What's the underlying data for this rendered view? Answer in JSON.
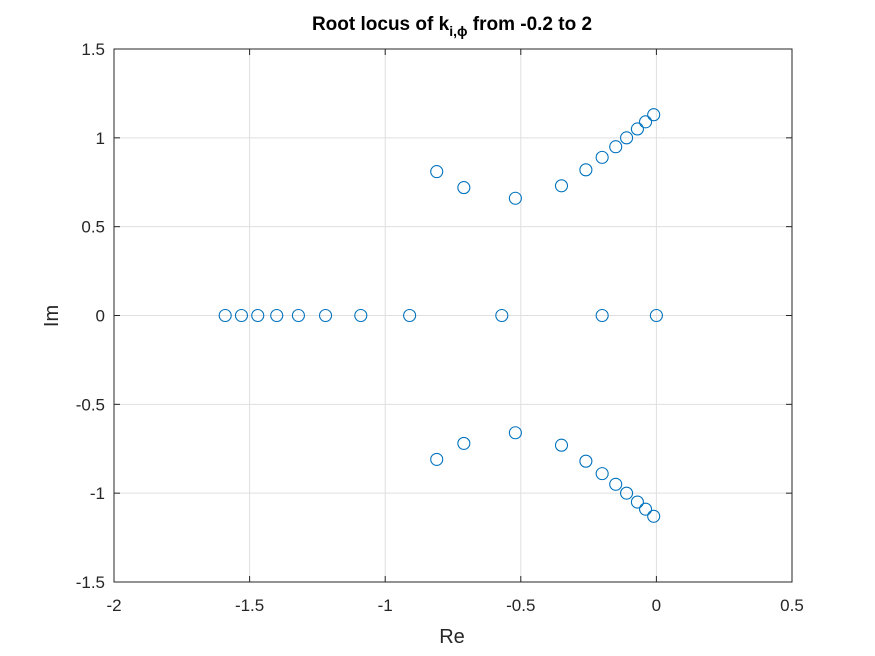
{
  "chart_data": {
    "type": "scatter",
    "title": {
      "prefix": "Root locus of k",
      "subscript": "i,ϕ",
      "suffix": " from -0.2 to 2"
    },
    "xlabel": "Re",
    "ylabel": "Im",
    "xlim": [
      -2,
      0.5
    ],
    "ylim": [
      -1.5,
      1.5
    ],
    "xticks": [
      -2,
      -1.5,
      -1,
      -0.5,
      0,
      0.5
    ],
    "xtick_labels": [
      "-2",
      "-1.5",
      "-1",
      "-0.5",
      "0",
      "0.5"
    ],
    "yticks": [
      -1.5,
      -1,
      -0.5,
      0,
      0.5,
      1,
      1.5
    ],
    "ytick_labels": [
      "-1.5",
      "-1",
      "-0.5",
      "0",
      "0.5",
      "1",
      "1.5"
    ],
    "grid": true,
    "marker": "circle-open",
    "series": [
      {
        "points": [
          [
            -1.59,
            0
          ],
          [
            -1.53,
            0
          ],
          [
            -1.47,
            0
          ],
          [
            -1.4,
            0
          ],
          [
            -1.32,
            0
          ],
          [
            -1.22,
            0
          ],
          [
            -1.09,
            0
          ],
          [
            -0.91,
            0
          ],
          [
            -0.57,
            0
          ],
          [
            -0.2,
            0
          ],
          [
            0.0,
            0
          ],
          [
            -0.81,
            0.81
          ],
          [
            -0.71,
            0.72
          ],
          [
            -0.52,
            0.66
          ],
          [
            -0.35,
            0.73
          ],
          [
            -0.26,
            0.82
          ],
          [
            -0.2,
            0.89
          ],
          [
            -0.15,
            0.95
          ],
          [
            -0.11,
            1.0
          ],
          [
            -0.07,
            1.05
          ],
          [
            -0.04,
            1.09
          ],
          [
            -0.01,
            1.13
          ],
          [
            -0.81,
            -0.81
          ],
          [
            -0.71,
            -0.72
          ],
          [
            -0.52,
            -0.66
          ],
          [
            -0.35,
            -0.73
          ],
          [
            -0.26,
            -0.82
          ],
          [
            -0.2,
            -0.89
          ],
          [
            -0.15,
            -0.95
          ],
          [
            -0.11,
            -1.0
          ],
          [
            -0.07,
            -1.05
          ],
          [
            -0.04,
            -1.09
          ],
          [
            -0.01,
            -1.13
          ]
        ]
      }
    ]
  },
  "colors": {
    "marker": "#0072BD",
    "axis": "#262626",
    "grid": "#dfdfdf",
    "background": "#ffffff"
  }
}
